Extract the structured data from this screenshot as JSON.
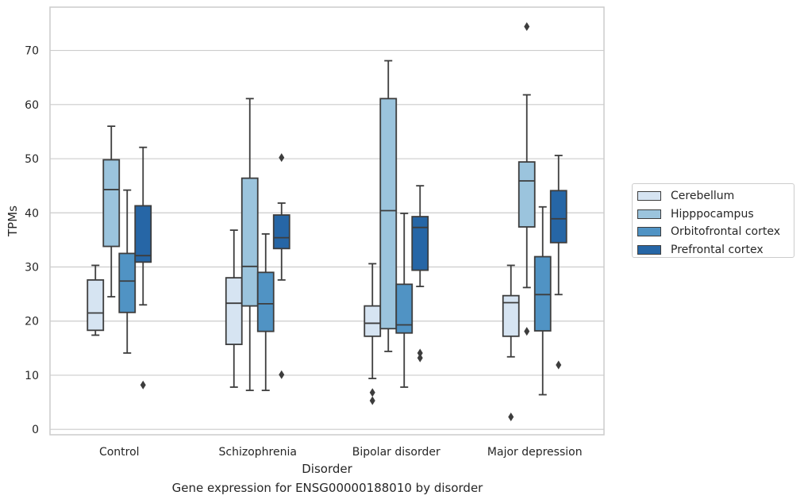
{
  "chart_data": {
    "type": "box",
    "title": "",
    "caption": "Gene expression for ENSG00000188010 by disorder",
    "xlabel": "Disorder",
    "ylabel": "TPMs",
    "ylim": [
      -1,
      78
    ],
    "yticks": [
      0,
      10,
      20,
      30,
      40,
      50,
      60,
      70
    ],
    "grid": "horizontal",
    "legend_position": "right",
    "categories": [
      "Control",
      "Schizophrenia",
      "Bipolar disorder",
      "Major depression"
    ],
    "series": [
      {
        "name": "Cerebellum",
        "color": "#d6e4f2",
        "boxes": [
          {
            "whislo": 17.4,
            "q1": 18.3,
            "med": 21.5,
            "q3": 27.6,
            "whishi": 30.3,
            "fliers": []
          },
          {
            "whislo": 7.8,
            "q1": 15.7,
            "med": 23.3,
            "q3": 28.0,
            "whishi": 36.8,
            "fliers": []
          },
          {
            "whislo": 9.4,
            "q1": 17.2,
            "med": 19.6,
            "q3": 22.8,
            "whishi": 30.6,
            "fliers": [
              6.8,
              5.3
            ]
          },
          {
            "whislo": 13.4,
            "q1": 17.2,
            "med": 23.4,
            "q3": 24.7,
            "whishi": 30.3,
            "fliers": [
              2.3
            ]
          }
        ]
      },
      {
        "name": "Hipppocampus",
        "color": "#9bc4dd",
        "boxes": [
          {
            "whislo": 24.5,
            "q1": 33.8,
            "med": 44.3,
            "q3": 49.8,
            "whishi": 56.0,
            "fliers": []
          },
          {
            "whislo": 7.2,
            "q1": 22.8,
            "med": 30.1,
            "q3": 46.4,
            "whishi": 61.1,
            "fliers": []
          },
          {
            "whislo": 14.4,
            "q1": 18.6,
            "med": 40.4,
            "q3": 61.1,
            "whishi": 68.1,
            "fliers": []
          },
          {
            "whislo": 26.2,
            "q1": 37.4,
            "med": 45.9,
            "q3": 49.4,
            "whishi": 61.8,
            "fliers": [
              74.4,
              18.1
            ]
          }
        ]
      },
      {
        "name": "Orbitofrontal cortex",
        "color": "#5093c4",
        "boxes": [
          {
            "whislo": 14.1,
            "q1": 21.6,
            "med": 27.4,
            "q3": 32.5,
            "whishi": 44.2,
            "fliers": []
          },
          {
            "whislo": 7.2,
            "q1": 18.1,
            "med": 23.2,
            "q3": 29.0,
            "whishi": 36.1,
            "fliers": []
          },
          {
            "whislo": 7.8,
            "q1": 17.8,
            "med": 19.3,
            "q3": 26.8,
            "whishi": 39.9,
            "fliers": []
          },
          {
            "whislo": 6.4,
            "q1": 18.2,
            "med": 24.9,
            "q3": 31.9,
            "whishi": 41.1,
            "fliers": []
          }
        ]
      },
      {
        "name": "Prefrontal cortex",
        "color": "#2666a6",
        "boxes": [
          {
            "whislo": 23.0,
            "q1": 30.9,
            "med": 32.1,
            "q3": 41.3,
            "whishi": 52.1,
            "fliers": [
              8.2
            ]
          },
          {
            "whislo": 27.6,
            "q1": 33.4,
            "med": 35.4,
            "q3": 39.6,
            "whishi": 41.8,
            "fliers": [
              50.2,
              10.1
            ]
          },
          {
            "whislo": 26.4,
            "q1": 29.4,
            "med": 37.3,
            "q3": 39.3,
            "whishi": 45.0,
            "fliers": [
              14.1,
              13.2
            ]
          },
          {
            "whislo": 24.9,
            "q1": 34.5,
            "med": 38.9,
            "q3": 44.1,
            "whishi": 50.6,
            "fliers": [
              11.9
            ]
          }
        ]
      }
    ]
  },
  "colors": {
    "line": "#3d3d3d",
    "grid": "#cccccc",
    "text": "#262626"
  }
}
